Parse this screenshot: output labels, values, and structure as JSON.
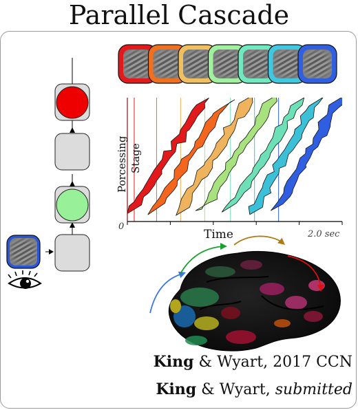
{
  "title": "Parallel Cascade",
  "axis": {
    "ylabel_line1": "Porcessing",
    "ylabel_line2": "Stage",
    "xlabel": "Time",
    "x_start": "0",
    "x_end": "2.0 sec"
  },
  "stimulus_colors": [
    "#e31a1c",
    "#f07020",
    "#f0c060",
    "#a0f0a0",
    "#70e8c0",
    "#40c8e0",
    "#3060e0"
  ],
  "bands": [
    {
      "color": "#e31a1c",
      "t0": 0.04,
      "t1": 0.44
    },
    {
      "color": "#f2671d",
      "t0": 0.17,
      "t1": 0.57
    },
    {
      "color": "#efb35e",
      "t0": 0.31,
      "t1": 0.7
    },
    {
      "color": "#a8e27e",
      "t0": 0.45,
      "t1": 0.84
    },
    {
      "color": "#6ee0b8",
      "t0": 0.6,
      "t1": 0.99
    },
    {
      "color": "#3cc0d8",
      "t0": 0.74,
      "t1": 1.1
    },
    {
      "color": "#2f5fe0",
      "t0": 0.88,
      "t1": 1.22
    }
  ],
  "cascade_nodes": [
    {
      "active": true,
      "color": "#ee0000"
    },
    {
      "active": false,
      "color": ""
    },
    {
      "active": true,
      "color": "#98f098"
    },
    {
      "active": false,
      "color": ""
    }
  ],
  "icons": {
    "eye": "eye-icon",
    "stimulus": "grating-stimulus-icon"
  },
  "flow_arrows": [
    "#3a78e0",
    "#1aa030",
    "#b07a10",
    "#e01010"
  ],
  "citations": {
    "line1_bold": "King",
    "line1_rest": " & Wyart, 2017 CCN",
    "line2_bold": "King",
    "line2_rest": " & Wyart, ",
    "line2_italic": "submitted"
  }
}
